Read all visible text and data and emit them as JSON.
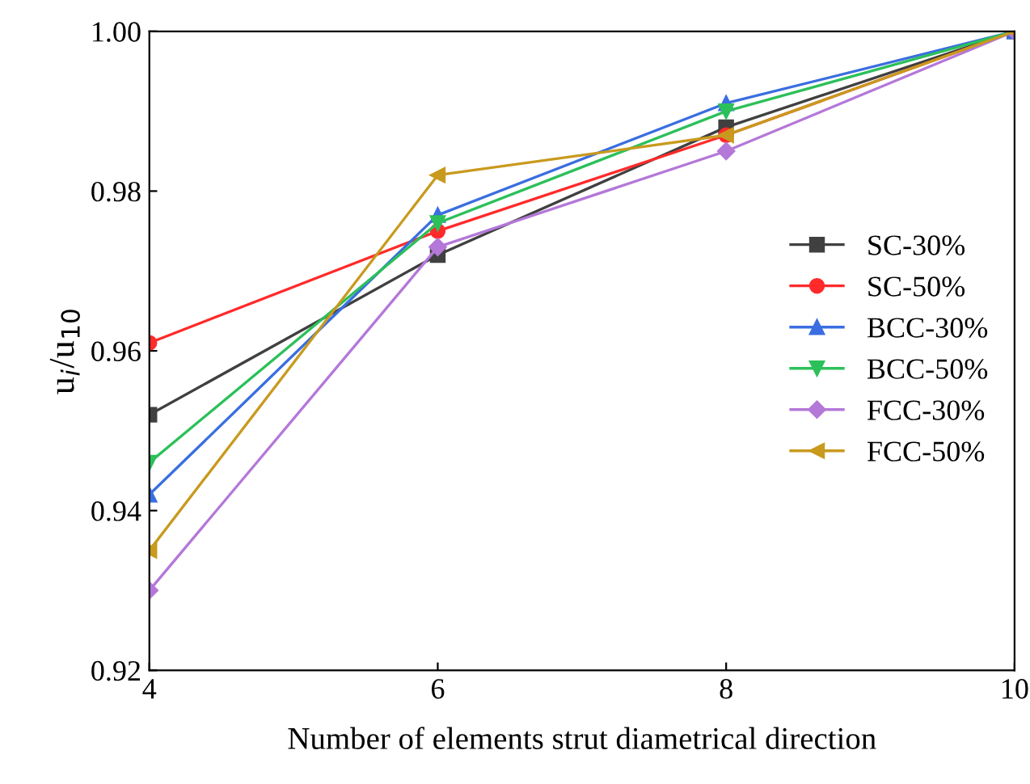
{
  "chart_data": {
    "type": "line",
    "xlabel": "Number of elements strut diametrical direction",
    "ylabel": "u$_{i}$/u$_{10}$",
    "x": [
      4,
      6,
      8,
      10
    ],
    "series": [
      {
        "name": "SC-30%",
        "color": "#404040",
        "marker": "square",
        "values": [
          0.952,
          0.972,
          0.988,
          1.0
        ]
      },
      {
        "name": "SC-50%",
        "color": "#ff2a2a",
        "marker": "circle",
        "values": [
          0.961,
          0.975,
          0.987,
          1.0
        ]
      },
      {
        "name": "BCC-30%",
        "color": "#3a6ee0",
        "marker": "triangle",
        "values": [
          0.942,
          0.977,
          0.991,
          1.0
        ]
      },
      {
        "name": "BCC-50%",
        "color": "#2cc05a",
        "marker": "triangle-down",
        "values": [
          0.946,
          0.976,
          0.99,
          1.0
        ]
      },
      {
        "name": "FCC-30%",
        "color": "#b478d8",
        "marker": "diamond",
        "values": [
          0.93,
          0.973,
          0.985,
          1.0
        ]
      },
      {
        "name": "FCC-50%",
        "color": "#c89a1e",
        "marker": "triangle-left",
        "values": [
          0.935,
          0.982,
          0.987,
          1.0
        ]
      }
    ],
    "xlim": [
      4,
      10
    ],
    "xticks": [
      4,
      6,
      8,
      10
    ],
    "ylim": [
      0.92,
      1.0
    ],
    "yticks": [
      {
        "value": 0.92,
        "label": "0.92"
      },
      {
        "value": 0.94,
        "label": "0.94"
      },
      {
        "value": 0.96,
        "label": "0.96"
      },
      {
        "value": 0.98,
        "label": "0.98"
      },
      {
        "value": 1.0,
        "label": "1.00"
      }
    ],
    "legend": "center right",
    "grid": false
  }
}
